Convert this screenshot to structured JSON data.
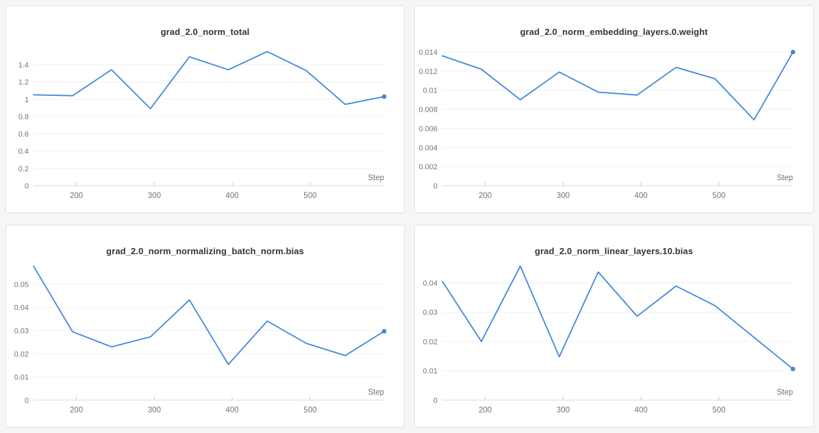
{
  "page": {
    "background": "#f6f6f7",
    "panel_background": "#ffffff",
    "panel_border": "#e4e4e7"
  },
  "colors": {
    "line": "#3f87db",
    "title_text": "#33343d",
    "tick_text": "#72737e",
    "gridline": "#f0f0f2",
    "axis_line": "#d8d8dc"
  },
  "chart_data": [
    {
      "type": "line",
      "title": "grad_2.0_norm_total",
      "xlabel": "Step",
      "ylabel": "",
      "x": [
        145,
        195,
        245,
        295,
        345,
        395,
        445,
        495,
        545,
        595
      ],
      "values": [
        1.05,
        1.04,
        1.34,
        0.89,
        1.49,
        1.34,
        1.55,
        1.33,
        0.94,
        1.03
      ],
      "xlim": [
        145,
        595
      ],
      "ylim": [
        0,
        1.6
      ],
      "x_ticks": {
        "values": [
          200,
          300,
          400,
          500
        ],
        "labels": [
          "200",
          "300",
          "400",
          "500"
        ]
      },
      "y_ticks": {
        "values": [
          0,
          0.2,
          0.4,
          0.6,
          0.8,
          1,
          1.2,
          1.4
        ],
        "labels": [
          "0",
          "0.2",
          "0.4",
          "0.6",
          "0.8",
          "1",
          "1.2",
          "1.4"
        ]
      },
      "grid": "horizontal",
      "legend": "none",
      "line_color": "#3f87db",
      "end_marker": true
    },
    {
      "type": "line",
      "title": "grad_2.0_norm_embedding_layers.0.weight",
      "xlabel": "Step",
      "ylabel": "",
      "x": [
        145,
        195,
        245,
        295,
        345,
        395,
        445,
        495,
        545,
        595
      ],
      "values": [
        0.0136,
        0.0122,
        0.009,
        0.0119,
        0.0098,
        0.0095,
        0.0124,
        0.0112,
        0.0069,
        0.014
      ],
      "xlim": [
        145,
        595
      ],
      "ylim": [
        0,
        0.0145
      ],
      "x_ticks": {
        "values": [
          200,
          300,
          400,
          500
        ],
        "labels": [
          "200",
          "300",
          "400",
          "500"
        ]
      },
      "y_ticks": {
        "values": [
          0,
          0.002,
          0.004,
          0.006,
          0.008,
          0.01,
          0.012,
          0.014
        ],
        "labels": [
          "0",
          "0.002",
          "0.004",
          "0.006",
          "0.008",
          "0.01",
          "0.012",
          "0.014"
        ]
      },
      "grid": "horizontal",
      "legend": "none",
      "line_color": "#3f87db",
      "end_marker": true
    },
    {
      "type": "line",
      "title": "grad_2.0_norm_normalizing_batch_norm.bias",
      "xlabel": "Step",
      "ylabel": "",
      "x": [
        145,
        195,
        245,
        295,
        345,
        395,
        445,
        495,
        545,
        595
      ],
      "values": [
        0.0578,
        0.0295,
        0.023,
        0.0273,
        0.0432,
        0.0154,
        0.0341,
        0.0245,
        0.0192,
        0.0297
      ],
      "xlim": [
        145,
        595
      ],
      "ylim": [
        0,
        0.0597
      ],
      "x_ticks": {
        "values": [
          200,
          300,
          400,
          500
        ],
        "labels": [
          "200",
          "300",
          "400",
          "500"
        ]
      },
      "y_ticks": {
        "values": [
          0,
          0.01,
          0.02,
          0.03,
          0.04,
          0.05
        ],
        "labels": [
          "0",
          "0.01",
          "0.02",
          "0.03",
          "0.04",
          "0.05"
        ]
      },
      "grid": "horizontal",
      "legend": "none",
      "line_color": "#3f87db",
      "end_marker": true
    },
    {
      "type": "line",
      "title": "grad_2.0_norm_linear_layers.10.bias",
      "xlabel": "Step",
      "ylabel": "",
      "x": [
        145,
        195,
        245,
        295,
        345,
        395,
        445,
        495,
        545,
        595
      ],
      "values": [
        0.0405,
        0.02,
        0.0457,
        0.0148,
        0.0437,
        0.0286,
        0.0389,
        0.0322,
        0.0214,
        0.0106
      ],
      "xlim": [
        145,
        595
      ],
      "ylim": [
        0,
        0.0472
      ],
      "x_ticks": {
        "values": [
          200,
          300,
          400,
          500
        ],
        "labels": [
          "200",
          "300",
          "400",
          "500"
        ]
      },
      "y_ticks": {
        "values": [
          0,
          0.01,
          0.02,
          0.03,
          0.04
        ],
        "labels": [
          "0",
          "0.01",
          "0.02",
          "0.03",
          "0.04"
        ]
      },
      "grid": "horizontal",
      "legend": "none",
      "line_color": "#3f87db",
      "end_marker": true
    }
  ]
}
